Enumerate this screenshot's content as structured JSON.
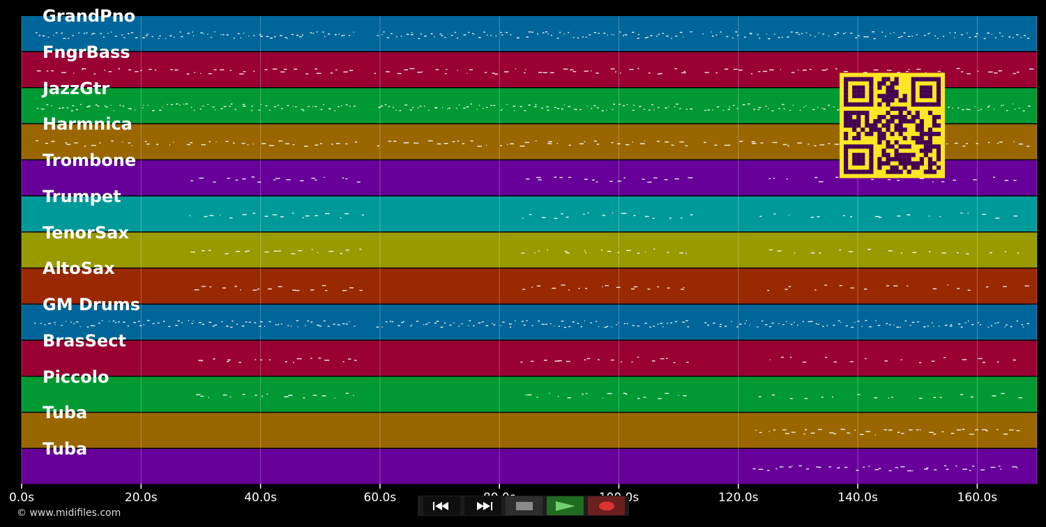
{
  "timeline": {
    "max_seconds": 170,
    "ticks": [
      {
        "value": 0,
        "label": "0.0s"
      },
      {
        "value": 20,
        "label": "20.0s"
      },
      {
        "value": 40,
        "label": "40.0s"
      },
      {
        "value": 60,
        "label": "60.0s"
      },
      {
        "value": 80,
        "label": "80.0s"
      },
      {
        "value": 100,
        "label": "100.0s"
      },
      {
        "value": 120,
        "label": "120.0s"
      },
      {
        "value": 140,
        "label": "140.0s"
      },
      {
        "value": 160,
        "label": "160.0s"
      }
    ]
  },
  "tracks": [
    {
      "name": "GrandPno",
      "color": "#006699",
      "density": "dense"
    },
    {
      "name": "FngrBass",
      "color": "#990033",
      "density": "medium"
    },
    {
      "name": "JazzGtr",
      "color": "#009933",
      "density": "dense"
    },
    {
      "name": "Harmnica",
      "color": "#996600",
      "density": "medium"
    },
    {
      "name": "Trombone",
      "color": "#660099",
      "density": "sparse"
    },
    {
      "name": "Trumpet",
      "color": "#009999",
      "density": "sparse"
    },
    {
      "name": "TenorSax",
      "color": "#999900",
      "density": "sparse"
    },
    {
      "name": "AltoSax",
      "color": "#992900",
      "density": "sparse"
    },
    {
      "name": "GM Drums",
      "color": "#006699",
      "density": "dense"
    },
    {
      "name": "BrasSect",
      "color": "#990033",
      "density": "sparse"
    },
    {
      "name": "Piccolo",
      "color": "#009933",
      "density": "sparse"
    },
    {
      "name": "Tuba",
      "color": "#996600",
      "density": "minimal"
    },
    {
      "name": "Tuba",
      "color": "#660099",
      "density": "minimal"
    }
  ],
  "footer": {
    "copyright": "© www.midifiles.com"
  },
  "transport": {
    "rewind_icon": "rewind-icon",
    "forward_icon": "fast-forward-icon",
    "stop_icon": "stop-icon",
    "play_icon": "play-icon",
    "record_icon": "record-icon",
    "colors": {
      "play_bg": "#1f6b1f",
      "record_bg": "#6b1f1f",
      "neutral_bg": "#2e2e2e"
    }
  },
  "qr": {
    "fg": "#fde725",
    "bg": "#440154"
  }
}
